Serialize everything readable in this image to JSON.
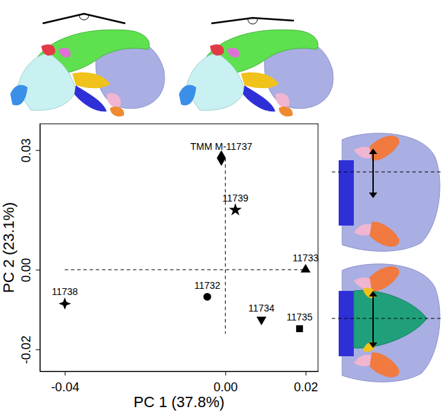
{
  "chart_data": {
    "type": "scatter",
    "x_label": "PC 1 (37.8%)",
    "y_label": "PC 2 (23.1%)",
    "xlim": [
      -0.0462,
      0.0231
    ],
    "ylim": [
      -0.0255,
      0.0366
    ],
    "xticks": [
      -0.04,
      {
        "value": 0,
        "label": "0.00"
      },
      0.02
    ],
    "yticks": [
      -0.02,
      {
        "value": 0,
        "label": "0.00"
      },
      0.03
    ],
    "grid": false,
    "color": "#000000",
    "series": [
      {
        "name": "TMM M-11737",
        "marker": "diamond",
        "x": [
          -0.001
        ],
        "y": [
          0.028
        ]
      },
      {
        "name": "11739",
        "marker": "star",
        "x": [
          0.0025
        ],
        "y": [
          0.015
        ]
      },
      {
        "name": "11733",
        "marker": "triangle-up",
        "x": [
          0.02
        ],
        "y": [
          0.0
        ]
      },
      {
        "name": "11738",
        "marker": "four-point-star",
        "x": [
          -0.04
        ],
        "y": [
          -0.0085
        ]
      },
      {
        "name": "11732",
        "marker": "circle",
        "x": [
          -0.0045
        ],
        "y": [
          -0.0068
        ]
      },
      {
        "name": "11734",
        "marker": "triangle-down",
        "x": [
          0.009
        ],
        "y": [
          -0.0125
        ]
      },
      {
        "name": "11735",
        "marker": "square",
        "x": [
          0.0185
        ],
        "y": [
          -0.0148
        ]
      }
    ]
  }
}
